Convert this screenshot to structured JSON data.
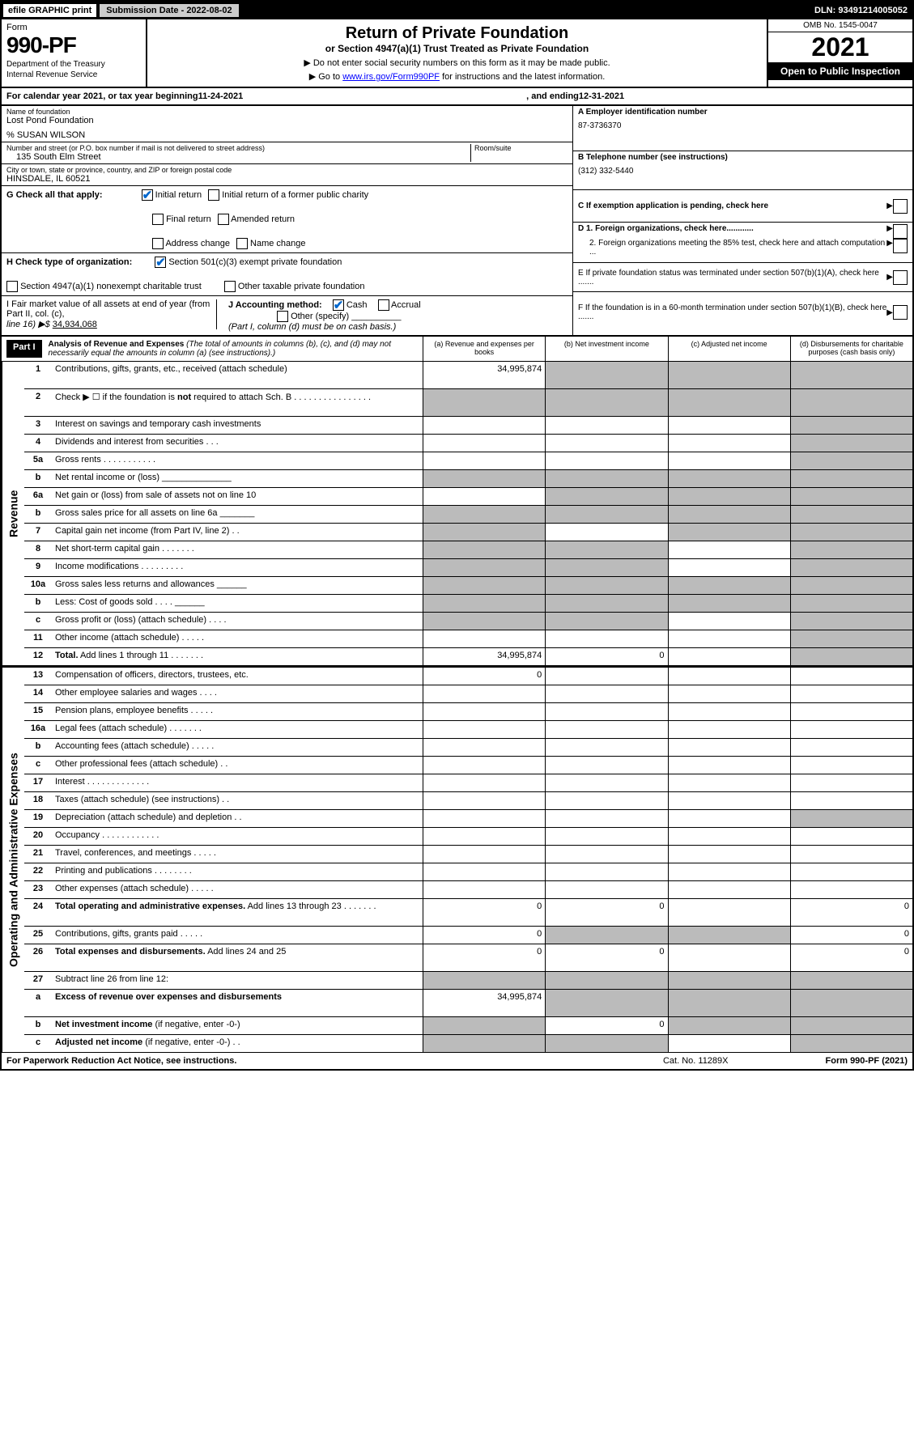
{
  "topbar": {
    "efile": "efile GRAPHIC print",
    "subdate_label": "Submission Date - 2022-08-02",
    "dln": "DLN: 93491214005052"
  },
  "header": {
    "form_label": "Form",
    "form_number": "990-PF",
    "dept1": "Department of the Treasury",
    "dept2": "Internal Revenue Service",
    "title": "Return of Private Foundation",
    "subtitle": "or Section 4947(a)(1) Trust Treated as Private Foundation",
    "note1": "▶ Do not enter social security numbers on this form as it may be made public.",
    "note2_pre": "▶ Go to ",
    "note2_link": "www.irs.gov/Form990PF",
    "note2_post": " for instructions and the latest information.",
    "omb": "OMB No. 1545-0047",
    "year": "2021",
    "open": "Open to Public Inspection"
  },
  "calyear": {
    "text_pre": "For calendar year 2021, or tax year beginning ",
    "begin": "11-24-2021",
    "mid": ", and ending ",
    "end": "12-31-2021"
  },
  "name_block": {
    "label": "Name of foundation",
    "name": "Lost Pond Foundation",
    "care_of": "% SUSAN WILSON",
    "addr_label": "Number and street (or P.O. box number if mail is not delivered to street address)",
    "addr": "135 South Elm Street",
    "room_label": "Room/suite",
    "city_label": "City or town, state or province, country, and ZIP or foreign postal code",
    "city": "HINSDALE, IL  60521"
  },
  "right_block": {
    "a_label": "A Employer identification number",
    "a_val": "87-3736370",
    "b_label": "B Telephone number (see instructions)",
    "b_val": "(312) 332-5440",
    "c_label": "C If exemption application is pending, check here",
    "d1": "D 1. Foreign organizations, check here............",
    "d2": "2. Foreign organizations meeting the 85% test, check here and attach computation ...",
    "e": "E  If private foundation status was terminated under section 507(b)(1)(A), check here .......",
    "f": "F  If the foundation is in a 60-month termination under section 507(b)(1)(B), check here ......."
  },
  "g_row": {
    "label": "G Check all that apply:",
    "opts": [
      "Initial return",
      "Initial return of a former public charity",
      "Final return",
      "Amended return",
      "Address change",
      "Name change"
    ],
    "checked": [
      true,
      false,
      false,
      false,
      false,
      false
    ]
  },
  "h_row": {
    "label": "H Check type of organization:",
    "opt1": "Section 501(c)(3) exempt private foundation",
    "opt2": "Section 4947(a)(1) nonexempt charitable trust",
    "opt3": "Other taxable private foundation",
    "checked": [
      true,
      false,
      false
    ]
  },
  "i_row": {
    "label": "I Fair market value of all assets at end of year (from Part II, col. (c),",
    "line16": "line 16) ▶$  ",
    "val": "34,934,068"
  },
  "j_row": {
    "label": "J Accounting method:",
    "cash": "Cash",
    "accrual": "Accrual",
    "other": "Other (specify)",
    "note": "(Part I, column (d) must be on cash basis.)",
    "cash_checked": true
  },
  "part1": {
    "label": "Part I",
    "title": "Analysis of Revenue and Expenses",
    "desc": "(The total of amounts in columns (b), (c), and (d) may not necessarily equal the amounts in column (a) (see instructions).)",
    "col_a": "(a)   Revenue and expenses per books",
    "col_b": "(b)   Net investment income",
    "col_c": "(c)   Adjusted net income",
    "col_d": "(d)   Disbursements for charitable purposes (cash basis only)"
  },
  "side_labels": {
    "revenue": "Revenue",
    "expenses": "Operating and Administrative Expenses"
  },
  "lines": [
    {
      "n": "1",
      "d": "Contributions, gifts, grants, etc., received (attach schedule)",
      "a": "34,995,874",
      "grey": [
        false,
        true,
        true,
        true
      ],
      "tall": true
    },
    {
      "n": "2",
      "d": "Check ▶ ☐ if the foundation is <b>not</b> required to attach Sch. B   .  .  .  .  .  .  .  .  .  .  .  .  .  .  .  .",
      "a": "",
      "grey": [
        true,
        true,
        true,
        true
      ],
      "tall": true
    },
    {
      "n": "3",
      "d": "Interest on savings and temporary cash investments",
      "a": "",
      "grey": [
        false,
        false,
        false,
        true
      ]
    },
    {
      "n": "4",
      "d": "Dividends and interest from securities   .   .   .",
      "a": "",
      "grey": [
        false,
        false,
        false,
        true
      ]
    },
    {
      "n": "5a",
      "d": "Gross rents   .   .   .   .   .   .   .   .   .   .   .",
      "a": "",
      "grey": [
        false,
        false,
        false,
        true
      ]
    },
    {
      "n": "b",
      "d": "Net rental income or (loss)  ______________",
      "a": "",
      "grey": [
        true,
        true,
        true,
        true
      ]
    },
    {
      "n": "6a",
      "d": "Net gain or (loss) from sale of assets not on line 10",
      "a": "",
      "grey": [
        false,
        true,
        true,
        true
      ]
    },
    {
      "n": "b",
      "d": "Gross sales price for all assets on line 6a _______",
      "a": "",
      "grey": [
        true,
        true,
        true,
        true
      ]
    },
    {
      "n": "7",
      "d": "Capital gain net income (from Part IV, line 2)   .   .",
      "a": "",
      "grey": [
        true,
        false,
        true,
        true
      ]
    },
    {
      "n": "8",
      "d": "Net short-term capital gain  .  .  .  .  .  .  .",
      "a": "",
      "grey": [
        true,
        true,
        false,
        true
      ]
    },
    {
      "n": "9",
      "d": "Income modifications  .  .  .  .  .  .  .  .  .",
      "a": "",
      "grey": [
        true,
        true,
        false,
        true
      ]
    },
    {
      "n": "10a",
      "d": "Gross sales less returns and allowances  ______",
      "a": "",
      "grey": [
        true,
        true,
        true,
        true
      ]
    },
    {
      "n": "b",
      "d": "Less: Cost of goods sold   .   .   .   .  ______",
      "a": "",
      "grey": [
        true,
        true,
        true,
        true
      ]
    },
    {
      "n": "c",
      "d": "Gross profit or (loss) (attach schedule)   .   .   .   .",
      "a": "",
      "grey": [
        true,
        true,
        false,
        true
      ]
    },
    {
      "n": "11",
      "d": "Other income (attach schedule)   .   .   .   .   .",
      "a": "",
      "grey": [
        false,
        false,
        false,
        true
      ]
    },
    {
      "n": "12",
      "d": "<b>Total.</b> Add lines 1 through 11   .   .   .   .   .   .   .",
      "a": "34,995,874",
      "b": "0",
      "grey": [
        false,
        false,
        false,
        true
      ]
    }
  ],
  "exp_lines": [
    {
      "n": "13",
      "d": "Compensation of officers, directors, trustees, etc.",
      "a": "0",
      "grey": [
        false,
        false,
        false,
        false
      ]
    },
    {
      "n": "14",
      "d": "Other employee salaries and wages   .   .   .   .",
      "grey": [
        false,
        false,
        false,
        false
      ]
    },
    {
      "n": "15",
      "d": "Pension plans, employee benefits  .  .  .  .  .",
      "grey": [
        false,
        false,
        false,
        false
      ]
    },
    {
      "n": "16a",
      "d": "Legal fees (attach schedule)  .  .  .  .  .  .  .",
      "grey": [
        false,
        false,
        false,
        false
      ]
    },
    {
      "n": "b",
      "d": "Accounting fees (attach schedule)  .  .  .  .  .",
      "grey": [
        false,
        false,
        false,
        false
      ]
    },
    {
      "n": "c",
      "d": "Other professional fees (attach schedule)   .   .",
      "grey": [
        false,
        false,
        false,
        false
      ]
    },
    {
      "n": "17",
      "d": "Interest  .  .  .  .  .  .  .  .  .  .  .  .  .",
      "grey": [
        false,
        false,
        false,
        false
      ]
    },
    {
      "n": "18",
      "d": "Taxes (attach schedule) (see instructions)   .   .",
      "grey": [
        false,
        false,
        false,
        false
      ]
    },
    {
      "n": "19",
      "d": "Depreciation (attach schedule) and depletion   .   .",
      "grey": [
        false,
        false,
        false,
        true
      ]
    },
    {
      "n": "20",
      "d": "Occupancy  .  .  .  .  .  .  .  .  .  .  .  .",
      "grey": [
        false,
        false,
        false,
        false
      ]
    },
    {
      "n": "21",
      "d": "Travel, conferences, and meetings  .  .  .  .  .",
      "grey": [
        false,
        false,
        false,
        false
      ]
    },
    {
      "n": "22",
      "d": "Printing and publications  .  .  .  .  .  .  .  .",
      "grey": [
        false,
        false,
        false,
        false
      ]
    },
    {
      "n": "23",
      "d": "Other expenses (attach schedule)  .  .  .  .  .",
      "grey": [
        false,
        false,
        false,
        false
      ]
    },
    {
      "n": "24",
      "d": "<b>Total operating and administrative expenses.</b> Add lines 13 through 23   .   .   .   .   .   .   .",
      "a": "0",
      "b": "0",
      "dcol": "0",
      "grey": [
        false,
        false,
        false,
        false
      ],
      "tall": true
    },
    {
      "n": "25",
      "d": "Contributions, gifts, grants paid   .   .   .   .   .",
      "a": "0",
      "dcol": "0",
      "grey": [
        false,
        true,
        true,
        false
      ]
    },
    {
      "n": "26",
      "d": "<b>Total expenses and disbursements.</b> Add lines 24 and 25",
      "a": "0",
      "b": "0",
      "dcol": "0",
      "grey": [
        false,
        false,
        false,
        false
      ],
      "tall": true
    },
    {
      "n": "27",
      "d": "Subtract line 26 from line 12:",
      "grey": [
        true,
        true,
        true,
        true
      ]
    },
    {
      "n": "a",
      "d": "<b>Excess of revenue over expenses and disbursements</b>",
      "a": "34,995,874",
      "grey": [
        false,
        true,
        true,
        true
      ],
      "tall": true
    },
    {
      "n": "b",
      "d": "<b>Net investment income</b> (if negative, enter -0-)",
      "b": "0",
      "grey": [
        true,
        false,
        true,
        true
      ]
    },
    {
      "n": "c",
      "d": "<b>Adjusted net income</b> (if negative, enter -0-)   .   .",
      "grey": [
        true,
        true,
        false,
        true
      ]
    }
  ],
  "footer": {
    "left": "For Paperwork Reduction Act Notice, see instructions.",
    "mid": "Cat. No. 11289X",
    "right": "Form 990-PF (2021)"
  },
  "colors": {
    "grey_cell": "#bbbbbb",
    "black": "#000000",
    "link": "#0000ff",
    "check": "#0066cc"
  }
}
